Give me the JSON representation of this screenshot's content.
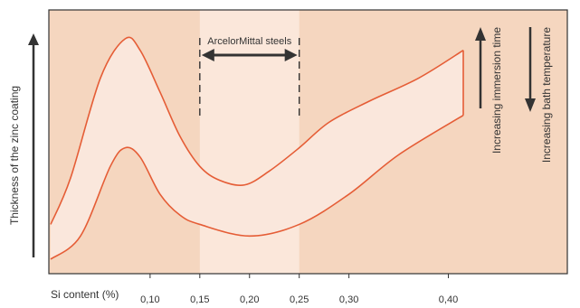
{
  "colors": {
    "background": "#f5d6bf",
    "steel_band": "#fbe7da",
    "envelope_fill": "#fae7dc",
    "curve": "#e55d36",
    "frame": "#333333",
    "text": "#333333"
  },
  "chart_data": {
    "type": "area",
    "title": "",
    "xlabel": "Si content (%)",
    "ylabel": "Thickness of the zinc coating",
    "xlim": [
      0.0,
      0.5
    ],
    "ylim": [
      0,
      100
    ],
    "x_ticks": [
      "0,10",
      "0,15",
      "0,20",
      "0,25",
      "0,30",
      "0,40"
    ],
    "x_tick_values": [
      0.1,
      0.15,
      0.2,
      0.25,
      0.3,
      0.4
    ],
    "highlight_band": {
      "label": "ArcelorMittal steels",
      "from": 0.15,
      "to": 0.25
    },
    "series": [
      {
        "role": "upper",
        "x": [
          0.0,
          0.02,
          0.05,
          0.075,
          0.09,
          0.11,
          0.13,
          0.15,
          0.17,
          0.195,
          0.22,
          0.25,
          0.28,
          0.32,
          0.37,
          0.415
        ],
        "y": [
          15,
          35,
          78,
          95,
          90,
          72,
          53,
          40,
          34,
          32,
          38,
          48,
          59,
          68,
          78,
          90
        ]
      },
      {
        "role": "lower",
        "x": [
          0.0,
          0.03,
          0.06,
          0.075,
          0.09,
          0.11,
          0.13,
          0.15,
          0.2,
          0.25,
          0.3,
          0.35,
          0.415
        ],
        "y": [
          0,
          10,
          40,
          48,
          44,
          28,
          19,
          15,
          10,
          15,
          28,
          45,
          62
        ]
      }
    ],
    "annotations": [
      {
        "text": "Increasing immersion time",
        "arrow": "up"
      },
      {
        "text": "Increasing bath temperature",
        "arrow": "down"
      }
    ],
    "grid": false,
    "legend": "none"
  }
}
